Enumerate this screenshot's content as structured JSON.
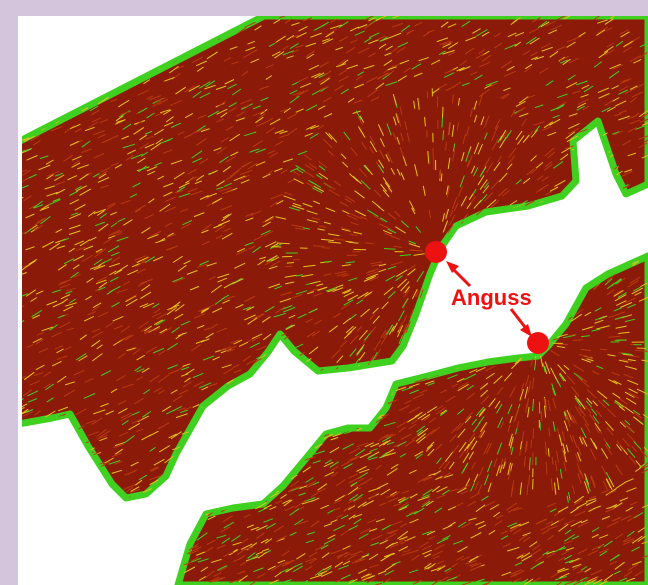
{
  "figure": {
    "annotation_label": "Anguss",
    "colors": {
      "frame_border": "#d4c4dc",
      "background": "#ffffff",
      "polymer_dark": "#8b1a08",
      "fiber_red": "#b83a10",
      "fiber_yellow": "#e7c21a",
      "fiber_green": "#3fd020",
      "gate_marker": "#ee1111",
      "label_color": "#ee1111"
    },
    "markers": [
      {
        "name": "gate-1",
        "icon": "gate-dot-icon"
      },
      {
        "name": "gate-2",
        "icon": "gate-dot-icon"
      }
    ]
  }
}
